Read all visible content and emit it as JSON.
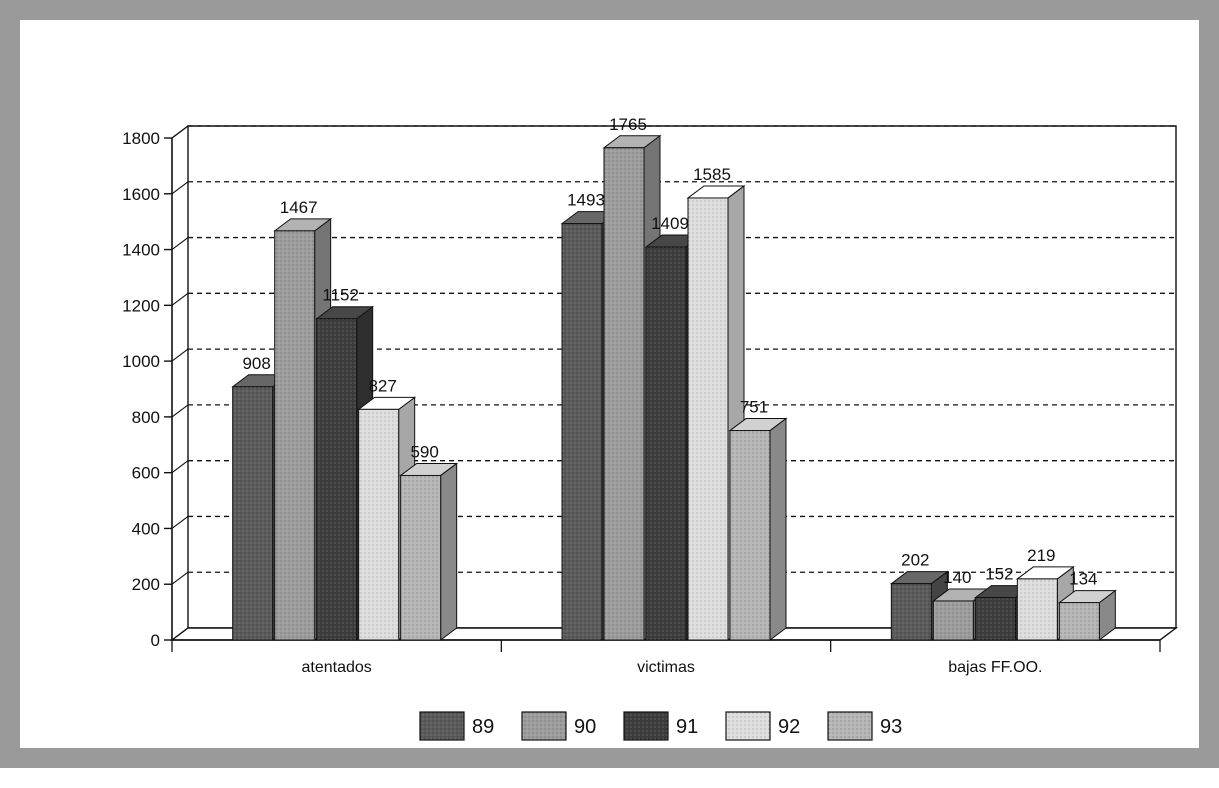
{
  "chart_data": {
    "type": "bar",
    "categories": [
      "atentados",
      "victimas",
      "bajas FF.OO."
    ],
    "series": [
      {
        "name": "89",
        "values": [
          908,
          1493,
          202
        ],
        "color": "#5a5a5a"
      },
      {
        "name": "90",
        "values": [
          1467,
          1765,
          140
        ],
        "color": "#9c9c9c"
      },
      {
        "name": "91",
        "values": [
          1152,
          1409,
          152
        ],
        "color": "#3e3e3e"
      },
      {
        "name": "92",
        "values": [
          827,
          1585,
          219
        ],
        "color": "#dedede"
      },
      {
        "name": "93",
        "values": [
          590,
          751,
          134
        ],
        "color": "#b6b6b6"
      }
    ],
    "data_labels": [
      [
        "908",
        "1493",
        "202"
      ],
      [
        "1467",
        "1765",
        "140"
      ],
      [
        "1152",
        "1409",
        "152"
      ],
      [
        "827",
        "1585",
        "219"
      ],
      [
        "590",
        "751",
        "134"
      ]
    ],
    "yticks": [
      "0",
      "200",
      "400",
      "600",
      "800",
      "1000",
      "1200",
      "1400",
      "1600",
      "1800"
    ],
    "ylim": [
      0,
      1800
    ],
    "grid": "horizontal dashed",
    "legend_position": "bottom",
    "style": "3d-clustered-bar"
  }
}
